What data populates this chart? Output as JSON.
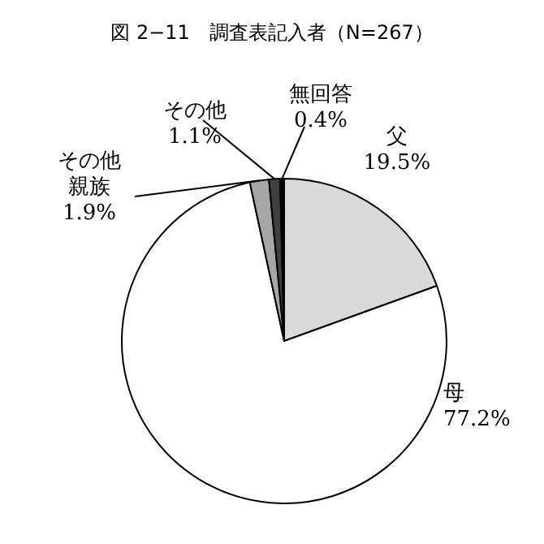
{
  "chart_data": {
    "type": "pie",
    "title": "図 2−11　調査表記入者（N=267）",
    "categories": [
      "父",
      "母",
      "その他親族",
      "その他",
      "無回答"
    ],
    "values": [
      19.5,
      77.2,
      1.9,
      1.1,
      0.4
    ],
    "value_labels": [
      "19.5%",
      "77.2%",
      "1.9%",
      "1.1%",
      "0.4%"
    ],
    "colors": [
      "#d9d9d9",
      "#ffffff",
      "#a6a6a6",
      "#404040",
      "#000000"
    ]
  }
}
